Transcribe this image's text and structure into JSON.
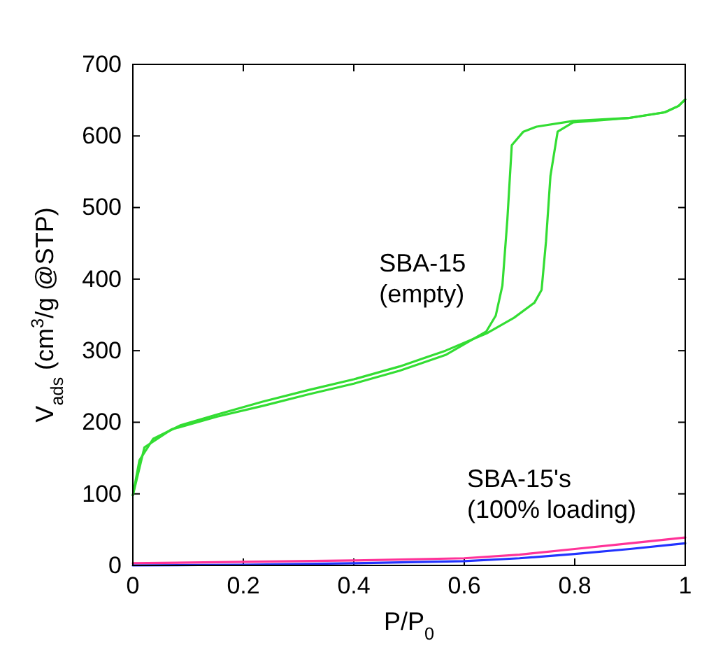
{
  "chart_data": {
    "type": "line",
    "xlabel": "P/P$_{0}$",
    "ylabel": "V$_{ads}$ (cm$^{3}$/g @STP)",
    "xlim": [
      0,
      1
    ],
    "ylim": [
      0,
      700
    ],
    "xticks": [
      0,
      0.2,
      0.4,
      0.6,
      0.8,
      1
    ],
    "yticks": [
      0,
      100,
      200,
      300,
      400,
      500,
      600,
      700
    ],
    "grid": false,
    "marker": "none",
    "line_style": "solid",
    "series": [
      {
        "color": "#33dd33",
        "x": [
          0,
          0.012,
          0.037,
          0.087,
          0.153,
          0.236,
          0.318,
          0.4,
          0.483,
          0.566,
          0.64,
          0.69,
          0.727,
          0.74,
          0.748,
          0.756,
          0.769,
          0.797,
          0.897,
          0.963,
          0.988,
          1.0
        ],
        "values": [
          98,
          147,
          177,
          196,
          211,
          229,
          245,
          260,
          278,
          300,
          324,
          346,
          367,
          385,
          453,
          544,
          606,
          619,
          625,
          633,
          642,
          651
        ]
      },
      {
        "color": "#33dd33",
        "x": [
          1.0,
          0.988,
          0.963,
          0.897,
          0.797,
          0.731,
          0.707,
          0.686,
          0.678,
          0.669,
          0.657,
          0.64,
          0.566,
          0.483,
          0.4,
          0.318,
          0.236,
          0.153,
          0.07,
          0.021,
          0
        ],
        "values": [
          651,
          642,
          633,
          625,
          621,
          613,
          606,
          587,
          483,
          391,
          349,
          327,
          294,
          272,
          254,
          239,
          223,
          208,
          190,
          165,
          98
        ]
      },
      {
        "color": "#ff3399",
        "x": [
          0,
          0.2,
          0.4,
          0.6,
          0.7,
          0.8,
          0.9,
          1.0
        ],
        "values": [
          3,
          5,
          7,
          10,
          15,
          23,
          31,
          39
        ]
      },
      {
        "color": "#2233ff",
        "x": [
          0,
          0.2,
          0.4,
          0.6,
          0.7,
          0.8,
          0.9,
          1.0
        ],
        "values": [
          0,
          1,
          3,
          6,
          10,
          16,
          23,
          31
        ]
      }
    ],
    "annotations": [
      "SBA-15\n(empty)",
      "SBA-15's\n(100% loading)"
    ]
  }
}
